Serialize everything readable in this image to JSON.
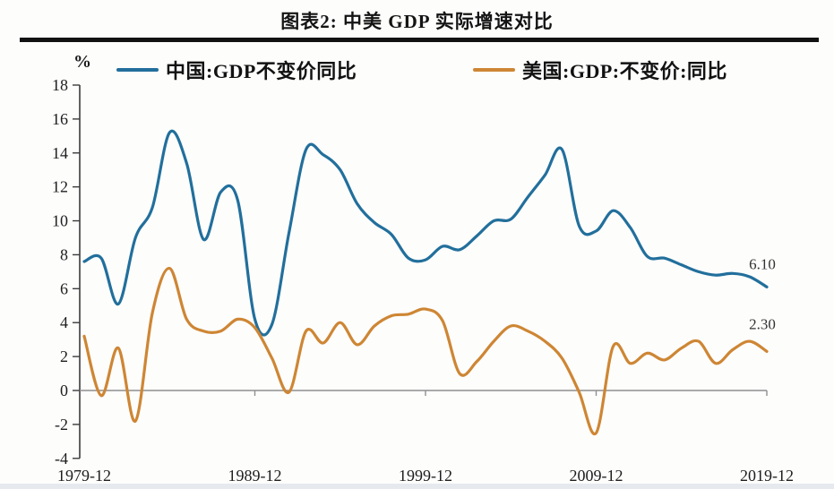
{
  "page": {
    "title": "图表2: 中美 GDP 实际增速对比",
    "unit_label": "%"
  },
  "legend": [
    {
      "label": "中国:GDP不变价同比",
      "color": "#226F9C"
    },
    {
      "label": "美国:GDP:不变价:同比",
      "color": "#CE8634"
    }
  ],
  "chart_data": {
    "type": "line",
    "title": "图表2: 中美 GDP 实际增速对比",
    "xlabel": "",
    "ylabel": "%",
    "ylim": [
      -4,
      18
    ],
    "y_ticks": [
      18,
      16,
      14,
      12,
      10,
      8,
      6,
      4,
      2,
      0,
      -2,
      -4
    ],
    "x_tick_labels": [
      "1979-12",
      "1989-12",
      "1999-12",
      "2009-12",
      "2019-12"
    ],
    "grid": false,
    "legend_position": "top",
    "years": [
      1979,
      1980,
      1981,
      1982,
      1983,
      1984,
      1985,
      1986,
      1987,
      1988,
      1989,
      1990,
      1991,
      1992,
      1993,
      1994,
      1995,
      1996,
      1997,
      1998,
      1999,
      2000,
      2001,
      2002,
      2003,
      2004,
      2005,
      2006,
      2007,
      2008,
      2009,
      2010,
      2011,
      2012,
      2013,
      2014,
      2015,
      2016,
      2017,
      2018,
      2019
    ],
    "series": [
      {
        "name": "中国:GDP不变价同比",
        "color": "#226F9C",
        "end_label": "6.10",
        "values": [
          7.6,
          7.8,
          5.1,
          9.0,
          10.8,
          15.2,
          13.4,
          8.9,
          11.7,
          11.2,
          4.2,
          3.9,
          9.3,
          14.2,
          13.9,
          13.0,
          11.0,
          9.9,
          9.2,
          7.8,
          7.7,
          8.5,
          8.3,
          9.1,
          10.0,
          10.1,
          11.4,
          12.7,
          14.2,
          9.7,
          9.4,
          10.6,
          9.6,
          7.9,
          7.8,
          7.4,
          7.0,
          6.8,
          6.9,
          6.7,
          6.1
        ]
      },
      {
        "name": "美国:GDP:不变价:同比",
        "color": "#CE8634",
        "end_label": "2.30",
        "values": [
          3.2,
          -0.3,
          2.5,
          -1.8,
          4.6,
          7.2,
          4.2,
          3.5,
          3.5,
          4.2,
          3.7,
          1.9,
          -0.1,
          3.5,
          2.8,
          4.0,
          2.7,
          3.8,
          4.4,
          4.5,
          4.8,
          4.1,
          1.0,
          1.7,
          2.9,
          3.8,
          3.5,
          2.9,
          1.9,
          -0.1,
          -2.5,
          2.6,
          1.6,
          2.2,
          1.8,
          2.5,
          2.9,
          1.6,
          2.4,
          2.9,
          2.3
        ]
      }
    ]
  }
}
